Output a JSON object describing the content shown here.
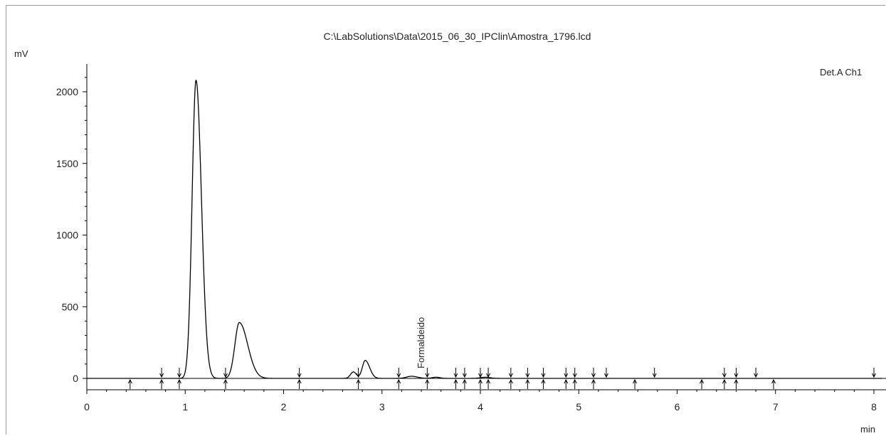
{
  "chart_data": {
    "type": "line",
    "title": "C:\\LabSolutions\\Data\\2015_06_30_IPClin\\Amostra_1796.lcd",
    "ylabel": "mV",
    "xlabel": "min",
    "channel_label": "Det.A Ch1",
    "xlim": [
      0,
      8.0
    ],
    "ylim": [
      -130,
      2200
    ],
    "x_ticks": [
      0,
      1,
      2,
      3,
      4,
      5,
      6,
      7,
      8
    ],
    "y_ticks": [
      0,
      500,
      1000,
      1500,
      2000
    ],
    "peaks": [
      {
        "rt": 1.11,
        "height": 2080,
        "sigma_left": 0.04,
        "sigma_right": 0.055
      },
      {
        "rt": 1.55,
        "height": 390,
        "sigma_left": 0.045,
        "sigma_right": 0.085
      },
      {
        "rt": 2.71,
        "height": 45,
        "sigma_left": 0.03,
        "sigma_right": 0.03
      },
      {
        "rt": 2.83,
        "height": 125,
        "sigma_left": 0.03,
        "sigma_right": 0.045
      },
      {
        "rt": 3.3,
        "height": 15,
        "sigma_left": 0.05,
        "sigma_right": 0.06
      },
      {
        "rt": 3.55,
        "height": 8,
        "sigma_left": 0.04,
        "sigma_right": 0.04
      },
      {
        "rt": 4.05,
        "height": 8,
        "sigma_left": 0.05,
        "sigma_right": 0.05
      }
    ],
    "annotations": [
      {
        "label": "Formaldeido",
        "x": 3.4
      }
    ],
    "integration_marks_lower": [
      0.44,
      0.76,
      0.94,
      1.41,
      2.16,
      2.76,
      3.17,
      3.46,
      3.75,
      3.84,
      4.0,
      4.08,
      4.31,
      4.48,
      4.64,
      4.87,
      4.96,
      5.15,
      5.57,
      6.25,
      6.48,
      6.6,
      6.98
    ],
    "integration_marks_upper": [
      0.76,
      0.94,
      1.41,
      2.16,
      2.76,
      3.17,
      3.46,
      3.75,
      3.84,
      4.0,
      4.08,
      4.31,
      4.48,
      4.64,
      4.87,
      4.96,
      5.15,
      5.28,
      5.77,
      6.48,
      6.6,
      6.8,
      8.0
    ]
  }
}
